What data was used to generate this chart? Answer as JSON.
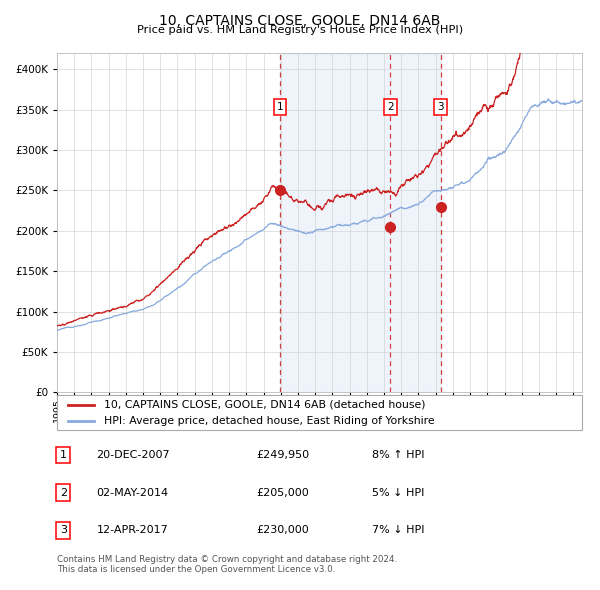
{
  "title": "10, CAPTAINS CLOSE, GOOLE, DN14 6AB",
  "subtitle": "Price paid vs. HM Land Registry's House Price Index (HPI)",
  "hpi_color": "#88aadd",
  "price_color": "#cc2222",
  "bg_color": "#ddeeff",
  "plot_bg": "#ffffff",
  "legend_line1": "10, CAPTAINS CLOSE, GOOLE, DN14 6AB (detached house)",
  "legend_line2": "HPI: Average price, detached house, East Riding of Yorkshire",
  "sales": [
    {
      "num": 1,
      "date": "20-DEC-2007",
      "price": 249950,
      "pct": "8%",
      "dir": "↑",
      "x_year": 2007.97
    },
    {
      "num": 2,
      "date": "02-MAY-2014",
      "price": 205000,
      "pct": "5%",
      "dir": "↓",
      "x_year": 2014.37
    },
    {
      "num": 3,
      "date": "12-APR-2017",
      "price": 230000,
      "pct": "7%",
      "dir": "↓",
      "x_year": 2017.28
    }
  ],
  "footer": "Contains HM Land Registry data © Crown copyright and database right 2024.\nThis data is licensed under the Open Government Licence v3.0.",
  "ylim": [
    0,
    420000
  ],
  "xlim_start": 1995.0,
  "xlim_end": 2025.5,
  "yticks": [
    0,
    50000,
    100000,
    150000,
    200000,
    250000,
    300000,
    350000,
    400000
  ]
}
